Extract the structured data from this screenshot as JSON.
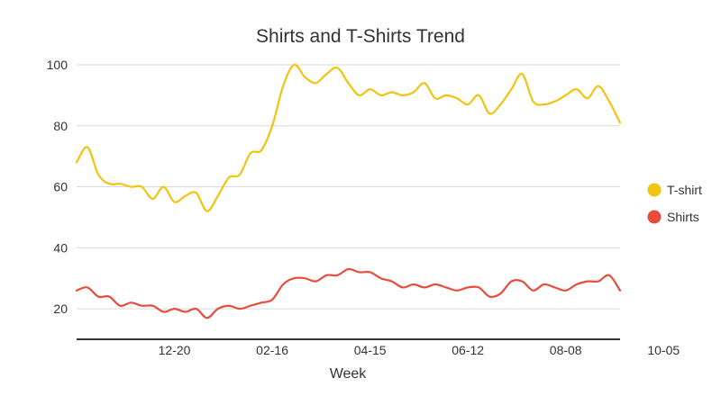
{
  "chart_data": {
    "type": "line",
    "title": "Shirts and T-Shirts Trend",
    "xlabel": "Week",
    "ylabel": "",
    "ylim": [
      10,
      100
    ],
    "y_ticks": [
      20,
      40,
      60,
      80,
      100
    ],
    "x_tick_labels": [
      "12-20",
      "02-16",
      "04-15",
      "06-12",
      "08-08",
      "10-05"
    ],
    "x_tick_positions": [
      9,
      18,
      27,
      36,
      45,
      54
    ],
    "legend_position": "right",
    "grid": true,
    "series": [
      {
        "name": "T-shirt",
        "color": "#f1c40f",
        "values": [
          68,
          73,
          64,
          61,
          61,
          60,
          60,
          56,
          60,
          55,
          57,
          58,
          52,
          57,
          63,
          64,
          71,
          72,
          80,
          93,
          100,
          96,
          94,
          97,
          99,
          94,
          90,
          92,
          90,
          91,
          90,
          91,
          94,
          89,
          90,
          89,
          87,
          90,
          84,
          87,
          92,
          97,
          88,
          87,
          88,
          90,
          92,
          89,
          93,
          88,
          81
        ]
      },
      {
        "name": "Shirts",
        "color": "#e74c3c",
        "values": [
          26,
          27,
          24,
          24,
          21,
          22,
          21,
          21,
          19,
          20,
          19,
          20,
          17,
          20,
          21,
          20,
          21,
          22,
          23,
          28,
          30,
          30,
          29,
          31,
          31,
          33,
          32,
          32,
          30,
          29,
          27,
          28,
          27,
          28,
          27,
          26,
          27,
          27,
          24,
          25,
          29,
          29,
          26,
          28,
          27,
          26,
          28,
          29,
          29,
          31,
          26
        ]
      }
    ]
  }
}
